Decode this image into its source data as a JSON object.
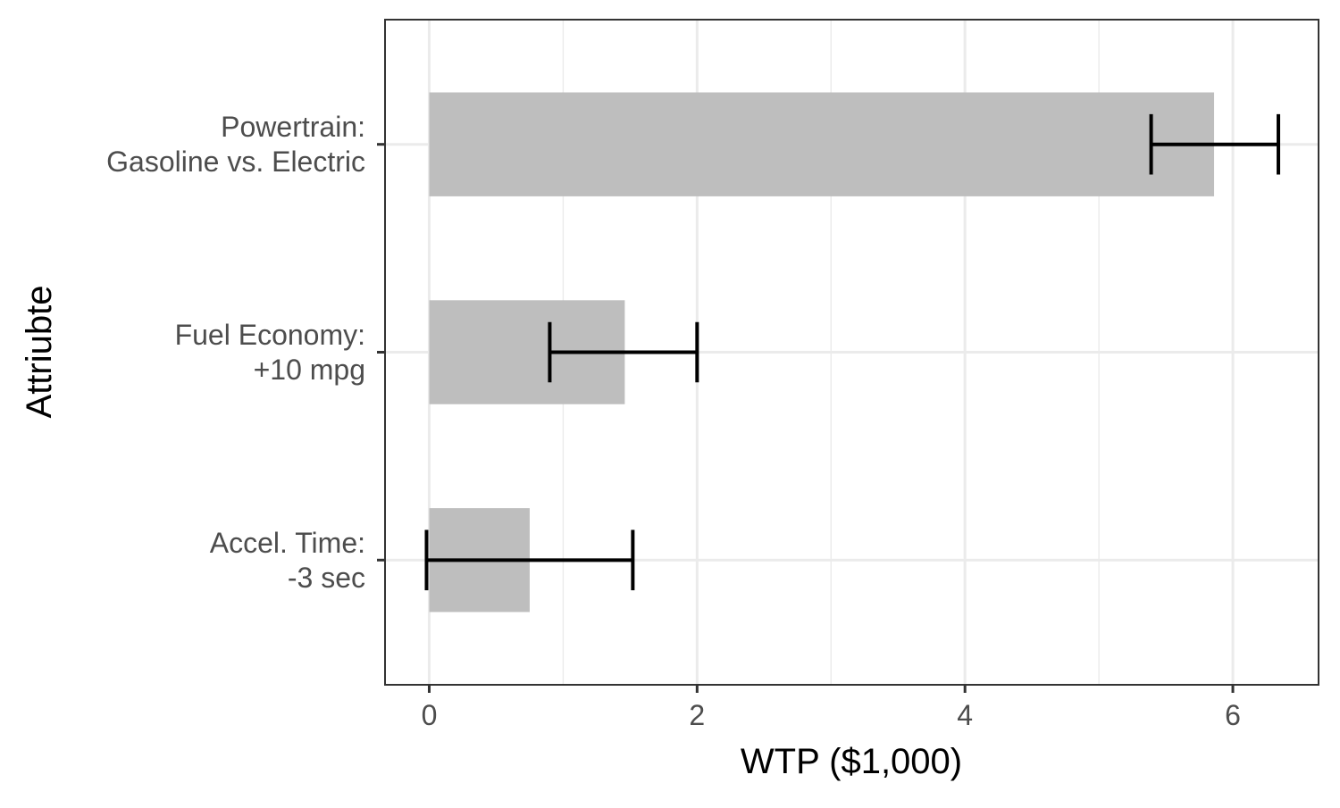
{
  "chart_data": {
    "type": "bar",
    "orientation": "horizontal",
    "categories": [
      [
        "Powertrain:",
        "Gasoline vs. Electric"
      ],
      [
        "Fuel Economy:",
        "+10 mpg"
      ],
      [
        "Accel. Time:",
        "-3 sec"
      ]
    ],
    "values": [
      5.86,
      1.46,
      0.75
    ],
    "error_bars": [
      {
        "low": 5.39,
        "high": 6.34
      },
      {
        "low": 0.9,
        "high": 2.0
      },
      {
        "low": -0.02,
        "high": 1.52
      }
    ],
    "xlabel": "WTP ($1,000)",
    "ylabel": "Attriubte",
    "xlim": [
      -0.33,
      6.64
    ],
    "xticks": [
      0,
      2,
      4,
      6
    ],
    "grid": true,
    "legend": "none",
    "colors": {
      "bar": "#bebebe",
      "error_bar": "#000000",
      "grid_major": "#ebebeb",
      "grid_minor": "#ebebeb",
      "panel_border": "#333333",
      "tick_label": "#4d4d4d",
      "axis_title": "#000000"
    }
  }
}
